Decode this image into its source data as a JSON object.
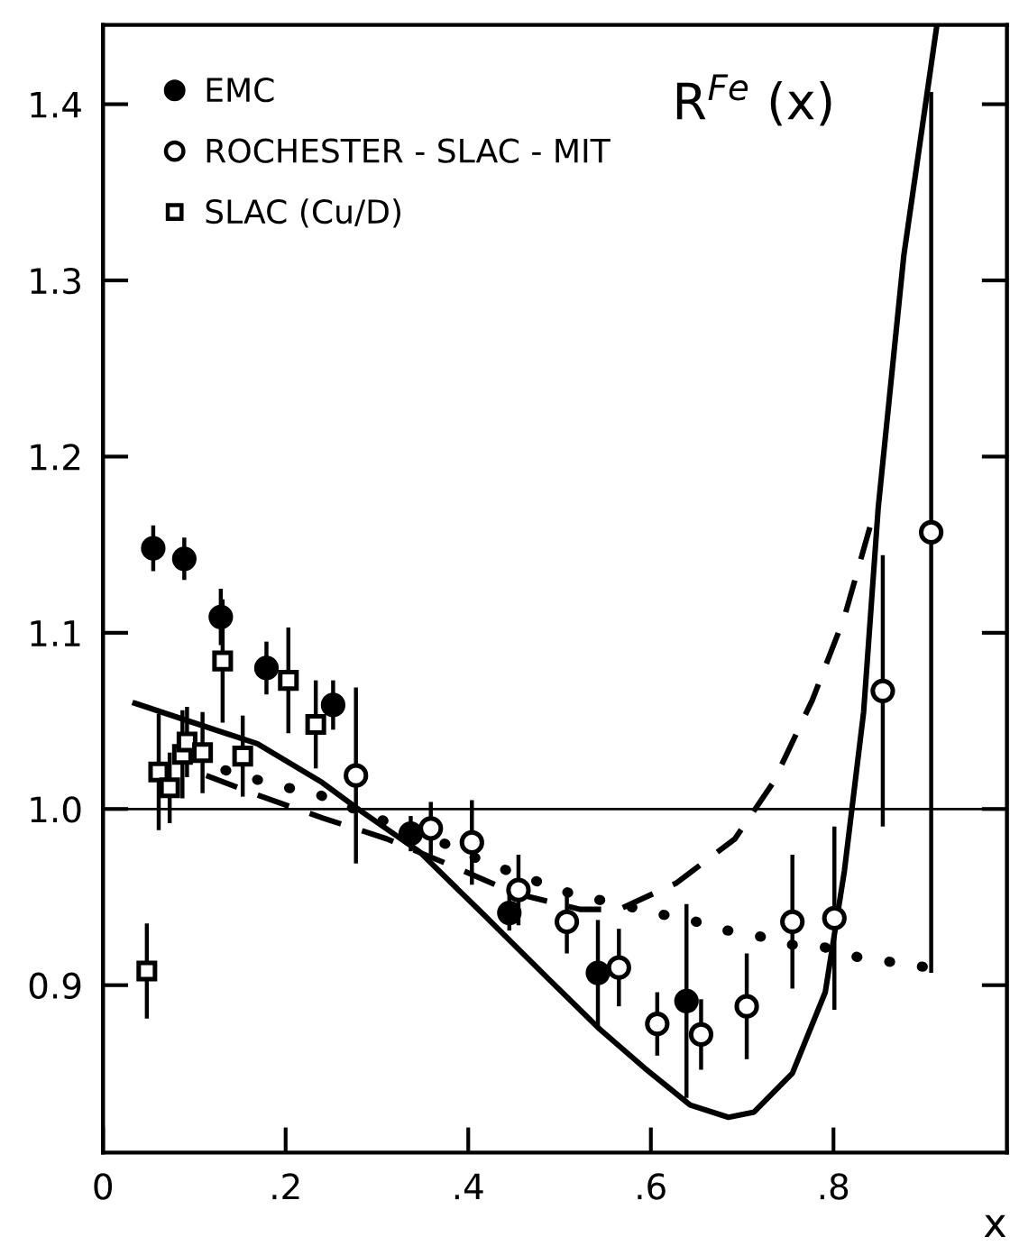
{
  "chart_data": {
    "type": "scatter",
    "xlabel": "x",
    "annotations": [
      "R$^{Fe}$ (x)"
    ],
    "xlim": [
      0,
      0.99
    ],
    "ylim": [
      0.805,
      1.445
    ],
    "xticks": [
      0,
      {
        "value": 0.2,
        "label": ".2"
      },
      {
        "value": 0.4,
        "label": ".4"
      },
      {
        "value": 0.6,
        "label": ".6"
      },
      {
        "value": 0.8,
        "label": ".8"
      }
    ],
    "yticks": [
      {
        "value": 0.9,
        "label": "0.9"
      },
      {
        "value": 1.0,
        "label": "1.0"
      },
      {
        "value": 1.1,
        "label": "1.1"
      },
      {
        "value": 1.2,
        "label": "1.2"
      },
      {
        "value": 1.3,
        "label": "1.3"
      },
      {
        "value": 1.4,
        "label": "1.4"
      }
    ],
    "grid": false,
    "legend": "top left",
    "ref_lines": [
      {
        "axis": "y",
        "value": 1.0,
        "color": "#000000",
        "line_style": "solid"
      }
    ],
    "series": [
      {
        "name": "EMC",
        "marker": "circle",
        "color": "#000000",
        "x": [
          0.055,
          0.089,
          0.129,
          0.179,
          0.252,
          0.337,
          0.445,
          0.542,
          0.639
        ],
        "values": [
          1.148,
          1.142,
          1.109,
          1.08,
          1.059,
          0.986,
          0.941,
          0.907,
          0.891
        ],
        "errors": [
          0.013,
          0.012,
          0.016,
          0.015,
          0.014,
          0.01,
          0.01,
          0.03,
          0.055
        ]
      },
      {
        "name": "ROCHESTER - SLAC - MIT",
        "marker": "circle",
        "color": "#ffffff",
        "x": [
          0.277,
          0.359,
          0.404,
          0.455,
          0.508,
          0.565,
          0.607,
          0.655,
          0.705,
          0.755,
          0.801,
          0.854,
          0.907
        ],
        "values": [
          1.019,
          0.989,
          0.981,
          0.954,
          0.936,
          0.91,
          0.878,
          0.872,
          0.888,
          0.936,
          0.938,
          1.067,
          1.157
        ],
        "errors": [
          0.05,
          0.015,
          0.024,
          0.02,
          0.018,
          0.022,
          0.018,
          0.02,
          0.03,
          0.038,
          0.052,
          0.077,
          0.25
        ]
      },
      {
        "name": "SLAC (Cu/D)",
        "marker": "square",
        "color": "#ffffff",
        "x": [
          0.048,
          0.061,
          0.073,
          0.087,
          0.092,
          0.109,
          0.131,
          0.153,
          0.203,
          0.233
        ],
        "values": [
          0.908,
          1.021,
          1.012,
          1.031,
          1.038,
          1.032,
          1.084,
          1.03,
          1.073,
          1.048
        ],
        "errors": [
          0.027,
          0.033,
          0.02,
          0.025,
          0.02,
          0.023,
          0.035,
          0.023,
          0.03,
          0.025
        ]
      },
      {
        "type": "line",
        "line_style": "solid",
        "marker": "none",
        "color": "#000000",
        "x": [
          0.035,
          0.099,
          0.169,
          0.24,
          0.282,
          0.346,
          0.417,
          0.487,
          0.544,
          0.593,
          0.643,
          0.685,
          0.713,
          0.755,
          0.791,
          0.812,
          0.833,
          0.849,
          0.877,
          0.913
        ],
        "values": [
          1.06,
          1.049,
          1.037,
          1.015,
          0.999,
          0.976,
          0.94,
          0.904,
          0.875,
          0.853,
          0.832,
          0.825,
          0.828,
          0.85,
          0.896,
          0.965,
          1.055,
          1.171,
          1.314,
          1.444
        ]
      },
      {
        "type": "line",
        "line_style": "dashed",
        "marker": "none",
        "color": "#000000",
        "x": [
          0.113,
          0.169,
          0.24,
          0.311,
          0.381,
          0.452,
          0.523,
          0.565,
          0.628,
          0.692,
          0.734,
          0.777,
          0.812,
          0.846
        ],
        "values": [
          1.019,
          1.008,
          0.995,
          0.983,
          0.968,
          0.952,
          0.943,
          0.943,
          0.958,
          0.983,
          1.015,
          1.062,
          1.109,
          1.171
        ]
      },
      {
        "type": "line",
        "line_style": "dotted",
        "marker": "none",
        "color": "#000000",
        "x": [
          0.134,
          0.166,
          0.203,
          0.237,
          0.304,
          0.381,
          0.417,
          0.48,
          0.523,
          0.561,
          0.6,
          0.639,
          0.671,
          0.71,
          0.752,
          0.787,
          0.826,
          0.865,
          0.904
        ],
        "values": [
          1.022,
          1.017,
          1.012,
          1.008,
          0.994,
          0.979,
          0.97,
          0.958,
          0.95,
          0.947,
          0.941,
          0.938,
          0.932,
          0.929,
          0.923,
          0.922,
          0.916,
          0.913,
          0.91
        ]
      }
    ]
  }
}
